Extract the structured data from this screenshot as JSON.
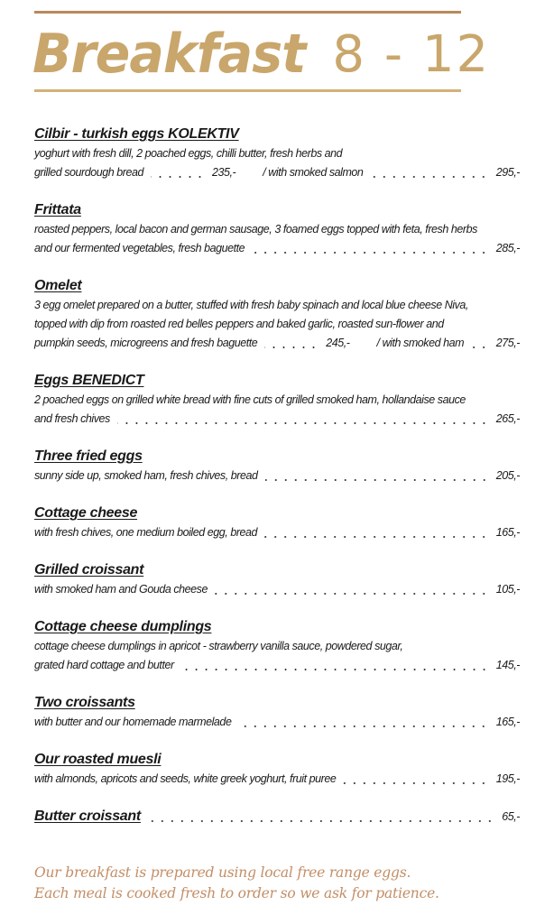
{
  "header": {
    "title": "Breakfast",
    "hours": "8 - 12"
  },
  "colors": {
    "accent": "#c9a66b",
    "top_rule": "#b9895c",
    "footer_text": "#c38e66"
  },
  "items": [
    {
      "title": "Cilbir - turkish eggs KOLEKTIV",
      "lines": [
        "yoghurt with fresh dill, 2 poached eggs, chilli butter, fresh herbs and"
      ],
      "last": {
        "text": "grilled sourdough bread",
        "price": "235,-",
        "extra_text": "/ with smoked salmon",
        "extra_price": "295,-"
      }
    },
    {
      "title": "Frittata",
      "lines": [
        "roasted peppers, local bacon and german sausage, 3 foamed eggs topped with feta, fresh herbs"
      ],
      "last": {
        "text": "and our fermented vegetables, fresh baguette",
        "price": "285,-"
      }
    },
    {
      "title": "Omelet",
      "lines": [
        "3 egg omelet prepared on a butter, stuffed with fresh baby spinach and local blue cheese Niva,",
        "topped with dip from roasted red belles peppers and baked garlic, roasted sun-flower and"
      ],
      "last": {
        "text": "pumpkin seeds, microgreens and fresh baguette",
        "price": "245,-",
        "extra_text": "/ with smoked ham",
        "extra_price": "275,-"
      }
    },
    {
      "title": "Eggs BENEDICT",
      "lines": [
        "2 poached eggs on grilled white bread with fine cuts of grilled smoked ham, hollandaise sauce"
      ],
      "last": {
        "text": "and fresh chives",
        "price": "265,-"
      }
    },
    {
      "title": "Three fried eggs",
      "lines": [],
      "last": {
        "text": "sunny side up, smoked ham, fresh chives, bread",
        "price": "205,-"
      }
    },
    {
      "title": "Cottage cheese",
      "lines": [],
      "last": {
        "text": "with fresh chives, one medium boiled egg, bread",
        "price": "165,-"
      }
    },
    {
      "title": "Grilled croissant",
      "lines": [],
      "last": {
        "text": "with smoked ham and Gouda cheese",
        "price": "105,-"
      }
    },
    {
      "title": "Cottage cheese dumplings",
      "lines": [
        "cottage cheese dumplings in apricot - strawberry vanilla sauce, powdered sugar,"
      ],
      "last": {
        "text": "grated hard cottage and butter",
        "price": "145,-"
      }
    },
    {
      "title": "Two croissants",
      "lines": [],
      "last": {
        "text": "with butter and our homemade marmelade",
        "price": "165,-"
      }
    },
    {
      "title": "Our roasted muesli",
      "lines": [],
      "last": {
        "text": "with almonds, apricots and seeds, white greek yoghurt, fruit puree",
        "price": "195,-"
      }
    },
    {
      "title": "Butter croissant",
      "lines": [],
      "title_price": "65,-"
    }
  ],
  "footer": {
    "line1": "Our breakfast is prepared using local free range eggs.",
    "line2": "Each meal is cooked fresh to order so we ask for patience."
  }
}
